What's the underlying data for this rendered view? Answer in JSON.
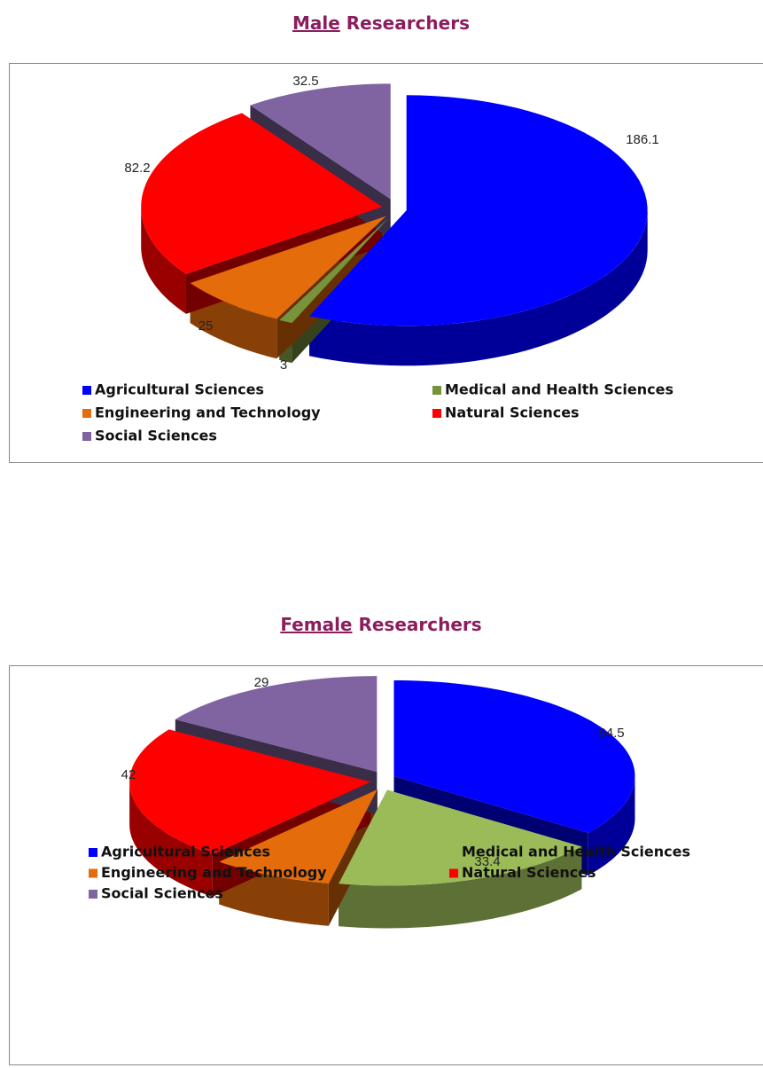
{
  "chart_data": [
    {
      "type": "pie",
      "title": "Male Researchers",
      "categories": [
        "Agricultural Sciences",
        "Medical and Health Sciences",
        "Engineering and Technology",
        "Natural Sciences",
        "Social Sciences"
      ],
      "values": [
        186.1,
        3,
        25,
        82.2,
        32.5
      ],
      "colors": [
        "#0000ff",
        "#77933c",
        "#e46c0a",
        "#ff0000",
        "#8064a2"
      ]
    },
    {
      "type": "pie",
      "title": "Female Researchers",
      "categories": [
        "Agricultural Sciences",
        "Medical and Health Sciences",
        "Engineering and Technology",
        "Natural Sciences",
        "Social Sciences"
      ],
      "values": [
        64.5,
        33.4,
        15,
        42,
        29
      ],
      "colors": [
        "#0000ff",
        "#9bbb59",
        "#e46c0a",
        "#ff0000",
        "#8064a2"
      ]
    }
  ]
}
